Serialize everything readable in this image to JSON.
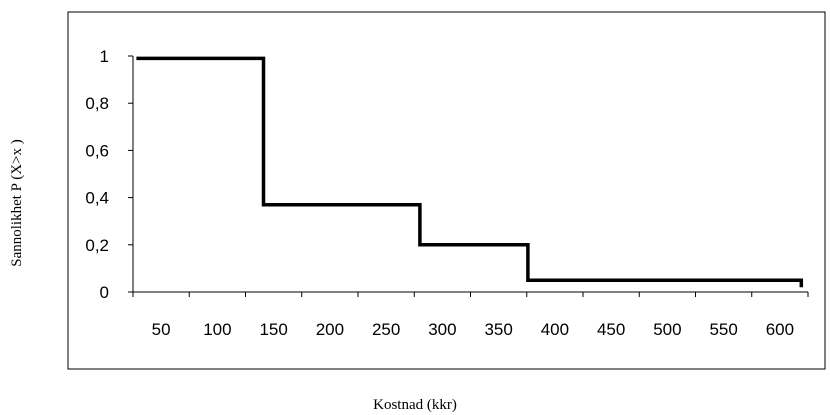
{
  "chart_data": {
    "type": "line",
    "subtype": "step",
    "title": "",
    "xlabel": "Kostnad (kkr)",
    "ylabel": "Sannolikhet P (X>x )",
    "x_tick_labels": [
      "50",
      "100",
      "150",
      "200",
      "250",
      "300",
      "350",
      "400",
      "450",
      "500",
      "550",
      "600"
    ],
    "y_tick_labels": [
      "0",
      "0,2",
      "0,4",
      "0,6",
      "0,8",
      "1"
    ],
    "y_ticks": [
      0,
      0.2,
      0.4,
      0.6,
      0.8,
      1.0
    ],
    "xlim": [
      25,
      625
    ],
    "ylim": [
      0,
      1.0
    ],
    "grid": false,
    "legend": "none",
    "line_color": "#000000",
    "series": [
      {
        "points": [
          {
            "x": 28,
            "y": 0.99
          },
          {
            "x": 141,
            "y": 0.99
          },
          {
            "x": 141,
            "y": 0.37
          },
          {
            "x": 280,
            "y": 0.37
          },
          {
            "x": 280,
            "y": 0.2
          },
          {
            "x": 376,
            "y": 0.2
          },
          {
            "x": 376,
            "y": 0.05
          },
          {
            "x": 619,
            "y": 0.05
          },
          {
            "x": 619,
            "y": 0.02
          }
        ]
      }
    ]
  }
}
